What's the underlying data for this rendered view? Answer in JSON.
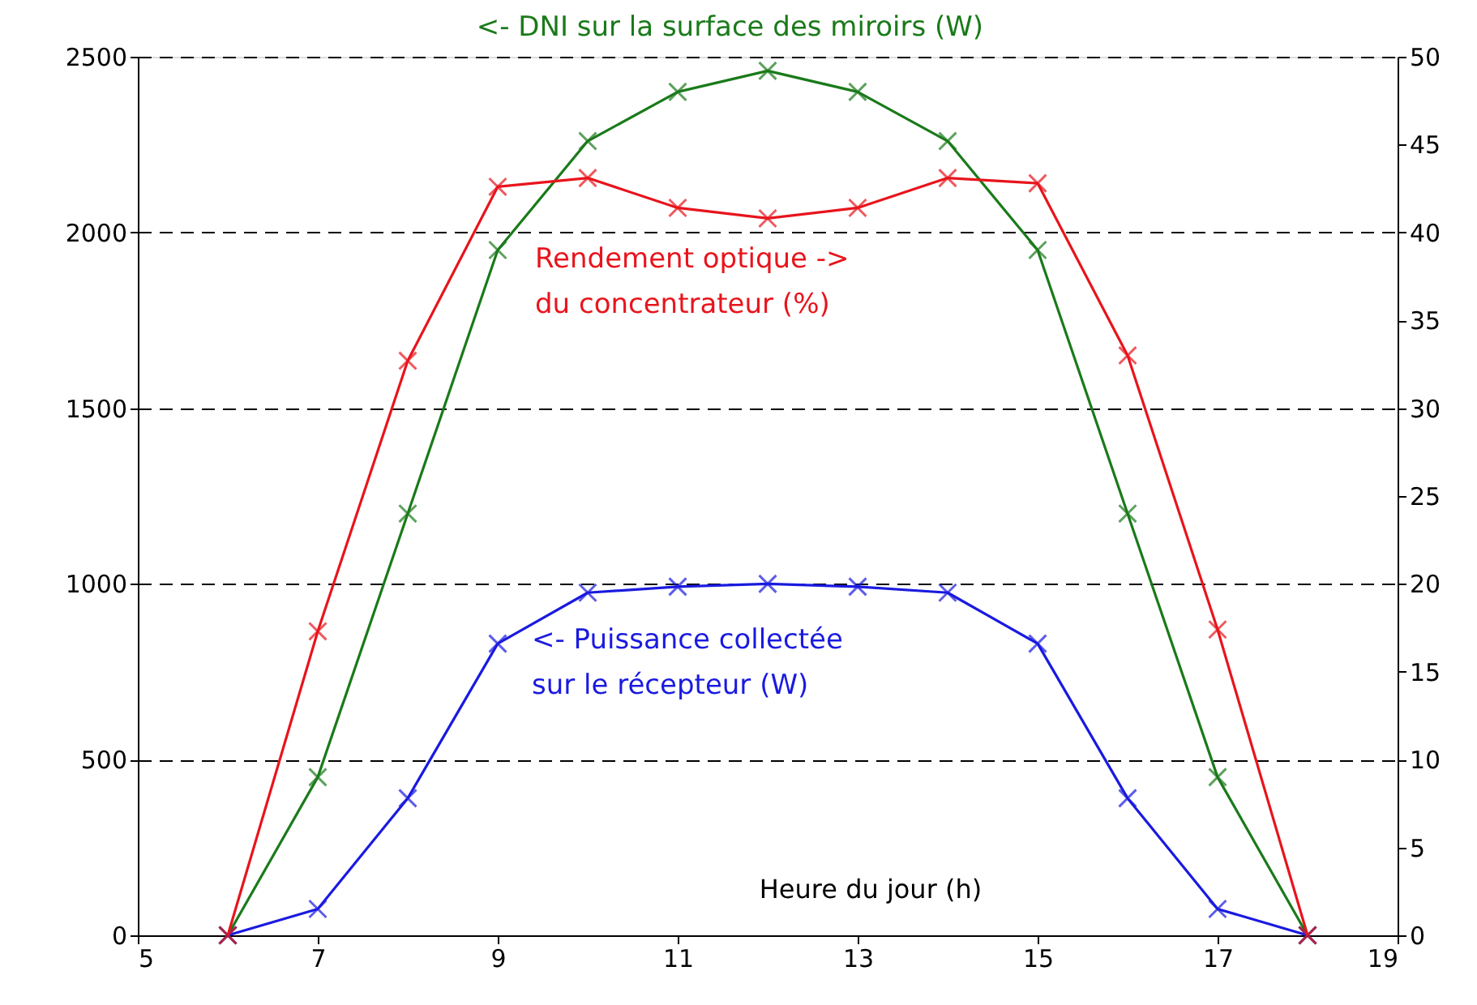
{
  "chart_data": {
    "type": "line",
    "xlabel": "Heure du jour (h)",
    "x": [
      6,
      7,
      8,
      9,
      10,
      11,
      12,
      13,
      14,
      15,
      16,
      17,
      18
    ],
    "series": [
      {
        "name": "<- DNI sur la surface des miroirs (W)",
        "color": "#1a7a1a",
        "marker": "cross",
        "values": [
          0,
          450,
          1200,
          1950,
          2260,
          2400,
          2460,
          2400,
          2260,
          1950,
          1200,
          450,
          0
        ]
      },
      {
        "name": "Rendement optique  ->\ndu concentrateur (%)",
        "color": "#e8141c",
        "marker": "cross",
        "axis": "y2",
        "values": [
          0,
          17.3,
          32.7,
          42.6,
          43.1,
          41.4,
          40.8,
          41.4,
          43.1,
          42.8,
          33,
          17.4,
          0
        ]
      },
      {
        "name": "<- Puissance collectée\nsur le récepteur (W)",
        "color": "#1a1ae0",
        "marker": "cross",
        "values": [
          0,
          75,
          390,
          830,
          975,
          992,
          1000,
          992,
          975,
          830,
          390,
          75,
          0
        ]
      }
    ],
    "xlim": [
      5,
      19
    ],
    "xticks": [
      5,
      7,
      9,
      11,
      13,
      15,
      17,
      19
    ],
    "ylim": [
      0,
      2500
    ],
    "yticks": [
      0,
      500,
      1000,
      1500,
      2000,
      2500
    ],
    "y2lim": [
      0,
      50
    ],
    "y2ticks": [
      0,
      5,
      10,
      15,
      20,
      25,
      30,
      35,
      40,
      45,
      50
    ],
    "grid": "y",
    "line_style": "solid"
  }
}
